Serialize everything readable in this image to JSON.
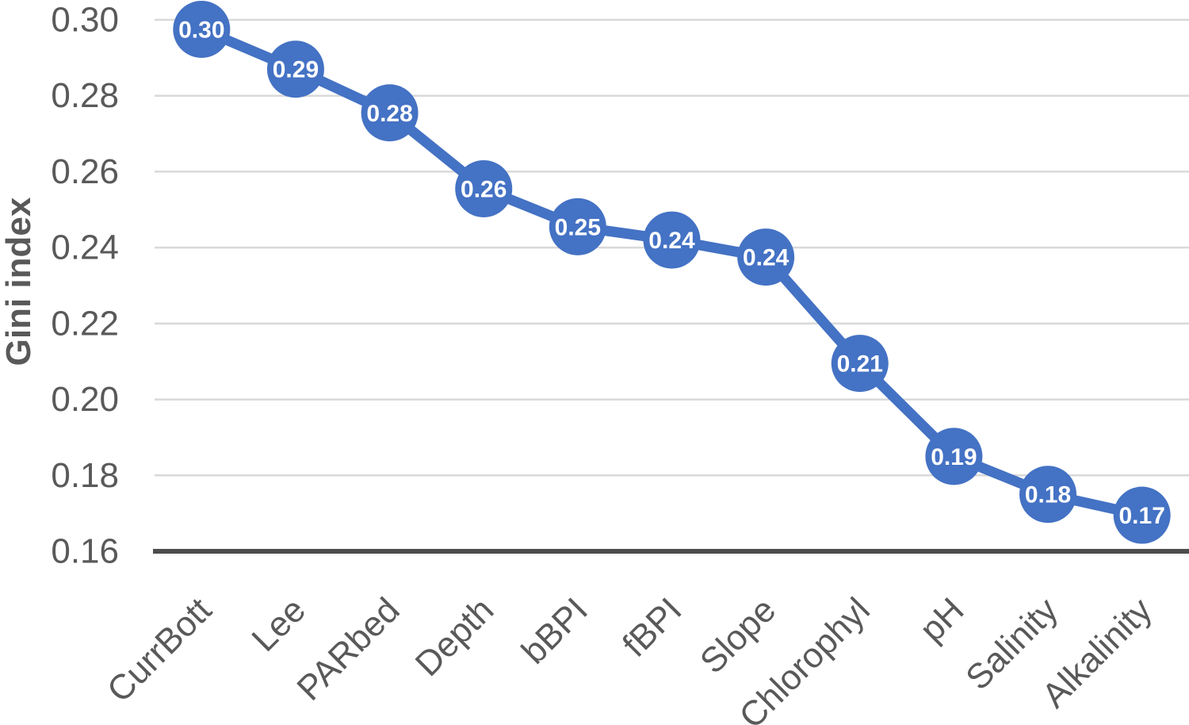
{
  "chart_data": {
    "type": "line",
    "title": "",
    "xlabel": "",
    "ylabel": "Gini index",
    "categories": [
      "CurrBott",
      "Lee",
      "PARbed",
      "Depth",
      "bBPI",
      "fBPI",
      "Slope",
      "Chlorophyl",
      "pH",
      "Salinity",
      "Alkalinity"
    ],
    "series": [
      {
        "name": "Gini index",
        "values": [
          0.3,
          0.29,
          0.28,
          0.26,
          0.25,
          0.24,
          0.24,
          0.21,
          0.19,
          0.18,
          0.17
        ],
        "data_labels": [
          "0.30",
          "0.29",
          "0.28",
          "0.26",
          "0.25",
          "0.24",
          "0.24",
          "0.21",
          "0.19",
          "0.18",
          "0.17"
        ],
        "plot_values_estimated": [
          0.2975,
          0.287,
          0.2755,
          0.2555,
          0.2455,
          0.242,
          0.2375,
          0.2095,
          0.185,
          0.175,
          0.1695
        ]
      }
    ],
    "ylim": [
      0.16,
      0.3
    ],
    "ytick_interval": 0.02,
    "ytick_labels": [
      "0.30",
      "0.28",
      "0.26",
      "0.24",
      "0.22",
      "0.20",
      "0.18",
      "0.16"
    ],
    "grid": "horizontal",
    "legend": "none",
    "x_label_rotation_deg": -45,
    "marker_shape": "circle",
    "colors": {
      "series": "#4472C4",
      "data_label_text": "#FFFFFF",
      "gridline": "#D9D9D9",
      "axis_line": "#4D4D4D",
      "axis_text": "#595959",
      "background": "#FFFFFF"
    }
  }
}
